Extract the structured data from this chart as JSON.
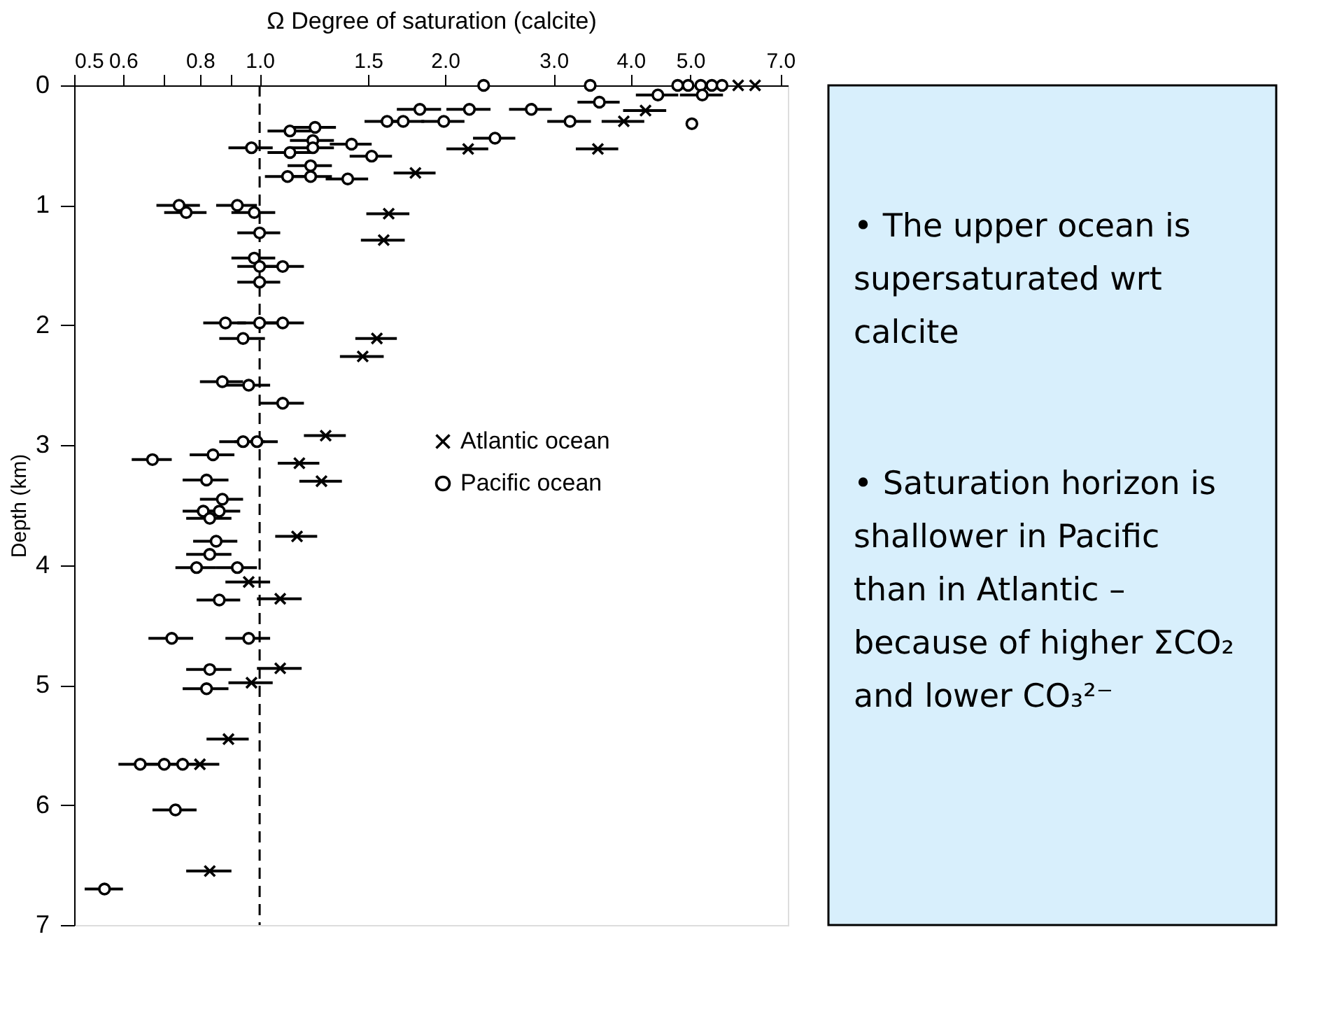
{
  "chart_data": [
    {
      "type": "scatter",
      "xlabel": "Ω  Degree of saturation (calcite)",
      "ylabel": "Depth (km)",
      "log": "x",
      "xlim": [
        0.5,
        7.2
      ],
      "ylim": [
        7,
        0
      ],
      "xticks": [
        0.5,
        0.6,
        {
          "value": 0.7,
          "label": null
        },
        0.8,
        {
          "value": 0.9,
          "label": null
        },
        {
          "value": 1,
          "label": "1.0"
        },
        1.5,
        {
          "value": 2,
          "label": "2.0"
        },
        {
          "value": 3,
          "label": "3.0"
        },
        {
          "value": 4,
          "label": "4.0"
        },
        {
          "value": 5,
          "label": "5.0"
        },
        {
          "value": 7,
          "label": "7.0"
        }
      ],
      "yticks": [
        0,
        1,
        2,
        3,
        4,
        5,
        6,
        7
      ],
      "grid": false,
      "legend": "center",
      "ref_lines": [
        {
          "axis": "x",
          "value": 1,
          "label": null,
          "line_style": "dashed",
          "color": "#000000"
        }
      ],
      "series": [
        {
          "name": "Atlantic ocean",
          "color": "#000000",
          "marker": "cross",
          "x": [
            5.98,
            6.37,
            4.23,
            3.9,
            2.18,
            3.54,
            1.79,
            1.62,
            1.59,
            1.55,
            1.47,
            1.28,
            1.16,
            1.26,
            1.15,
            0.96,
            1.08,
            1.08,
            0.97,
            0.89,
            0.8,
            0.83
          ],
          "values": [
            0,
            0,
            0.21,
            0.3,
            0.53,
            0.53,
            0.73,
            1.07,
            1.29,
            2.11,
            2.26,
            2.92,
            3.15,
            3.3,
            3.76,
            4.14,
            4.28,
            4.86,
            4.98,
            5.45,
            5.66,
            6.55
          ],
          "xerrors": [
            null,
            null,
            0.34,
            0.31,
            0.17,
            0.28,
            0.14,
            0.13,
            0.13,
            0.12,
            0.12,
            0.1,
            0.09,
            0.1,
            0.09,
            0.08,
            0.09,
            0.09,
            0.08,
            0.07,
            0.06,
            0.07
          ]
        },
        {
          "name": "Pacific ocean",
          "color": "#000000",
          "marker": "circle",
          "x": [
            2.31,
            3.44,
            4.77,
            4.96,
            5.2,
            5.42,
            5.63,
            4.43,
            5.23,
            3.56,
            1.82,
            2.19,
            2.76,
            1.61,
            1.71,
            1.99,
            3.19,
            5.03,
            1.23,
            1.12,
            2.41,
            1.22,
            1.41,
            1.22,
            0.97,
            1.12,
            1.52,
            1.21,
            1.11,
            1.21,
            1.39,
            0.74,
            0.92,
            0.76,
            0.98,
            1.0,
            0.98,
            1.0,
            1.09,
            1.0,
            0.88,
            1.0,
            1.09,
            0.94,
            0.87,
            0.96,
            1.09,
            0.94,
            0.99,
            0.84,
            0.67,
            0.82,
            0.87,
            0.81,
            0.86,
            0.83,
            0.85,
            0.83,
            0.79,
            0.92,
            0.86,
            0.72,
            0.96,
            0.83,
            0.82,
            0.64,
            0.7,
            0.75,
            0.73,
            0.56
          ],
          "values": [
            0,
            0,
            0,
            0,
            0,
            0,
            0,
            0.08,
            0.08,
            0.14,
            0.2,
            0.2,
            0.2,
            0.3,
            0.3,
            0.3,
            0.3,
            0.32,
            0.35,
            0.38,
            0.44,
            0.46,
            0.49,
            0.52,
            0.52,
            0.56,
            0.59,
            0.67,
            0.76,
            0.76,
            0.78,
            1.0,
            1.0,
            1.06,
            1.06,
            1.23,
            1.44,
            1.51,
            1.51,
            1.64,
            1.98,
            1.98,
            1.98,
            2.11,
            2.47,
            2.5,
            2.65,
            2.97,
            2.97,
            3.08,
            3.12,
            3.29,
            3.45,
            3.55,
            3.55,
            3.61,
            3.8,
            3.91,
            4.02,
            4.02,
            4.29,
            4.61,
            4.61,
            4.87,
            5.03,
            5.66,
            5.66,
            5.66,
            6.04,
            6.7
          ],
          "xerrors": [
            null,
            null,
            null,
            null,
            null,
            null,
            null,
            0.35,
            0.42,
            0.28,
            0.15,
            0.18,
            0.22,
            0.13,
            0.14,
            0.16,
            0.26,
            null,
            0.1,
            0.09,
            0.19,
            0.1,
            0.11,
            0.1,
            0.08,
            0.09,
            0.12,
            0.1,
            0.09,
            0.1,
            0.11,
            0.06,
            0.07,
            0.06,
            0.08,
            0.08,
            0.08,
            0.08,
            0.09,
            0.08,
            0.07,
            0.08,
            0.09,
            0.08,
            0.07,
            0.08,
            0.09,
            0.08,
            0.08,
            0.07,
            0.05,
            0.07,
            0.07,
            0.06,
            0.07,
            0.07,
            0.07,
            0.07,
            0.06,
            0.07,
            0.07,
            0.06,
            0.08,
            0.07,
            0.07,
            0.05,
            0.06,
            0.06,
            0.06,
            0.04
          ]
        }
      ]
    },
    {
      "type": "other",
      "annotations": [
        "• The upper ocean is supersaturated wrt calcite",
        "• Saturation horizon is shallower in Pacific than in Atlantic – because of higher ΣCO₂ and lower CO₃²⁻"
      ]
    }
  ]
}
